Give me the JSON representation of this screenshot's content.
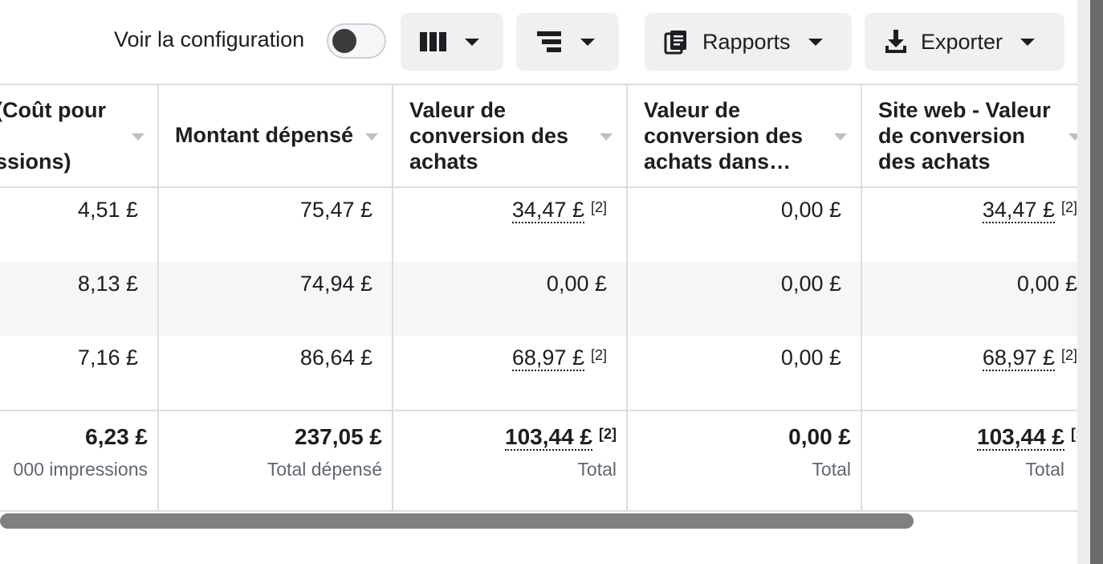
{
  "toolbar": {
    "config_label": "Voir la configuration",
    "reports_label": "Rapports",
    "export_label": "Exporter"
  },
  "table": {
    "headers": [
      {
        "line1": "(Coût pour",
        "line2": "",
        "line3": "ssions)"
      },
      {
        "line1": "Montant dépensé"
      },
      {
        "line1": "Valeur de",
        "line2": "conversion des",
        "line3": "achats"
      },
      {
        "line1": "Valeur de",
        "line2": "conversion des",
        "line3": "achats dans…"
      },
      {
        "line1": "Site web - Valeur",
        "line2": "de conversion",
        "line3": "des achats"
      }
    ],
    "rows": [
      [
        "4,51 £",
        "75,47 £",
        "34,47 £",
        "0,00 £",
        "34,47 £"
      ],
      [
        "8,13 £",
        "74,94 £",
        "0,00 £",
        "0,00 £",
        "0,00 £"
      ],
      [
        "7,16 £",
        "86,64 £",
        "68,97 £",
        "0,00 £",
        "68,97 £"
      ]
    ],
    "footnote": "[2]",
    "footnote_cut": "[:",
    "totals": [
      "6,23 £",
      "237,05 £",
      "103,44 £",
      "0,00 £",
      "103,44 £"
    ],
    "totals_sub": [
      "000 impressions",
      "Total dépensé",
      "Total",
      "Total",
      "Total"
    ]
  }
}
